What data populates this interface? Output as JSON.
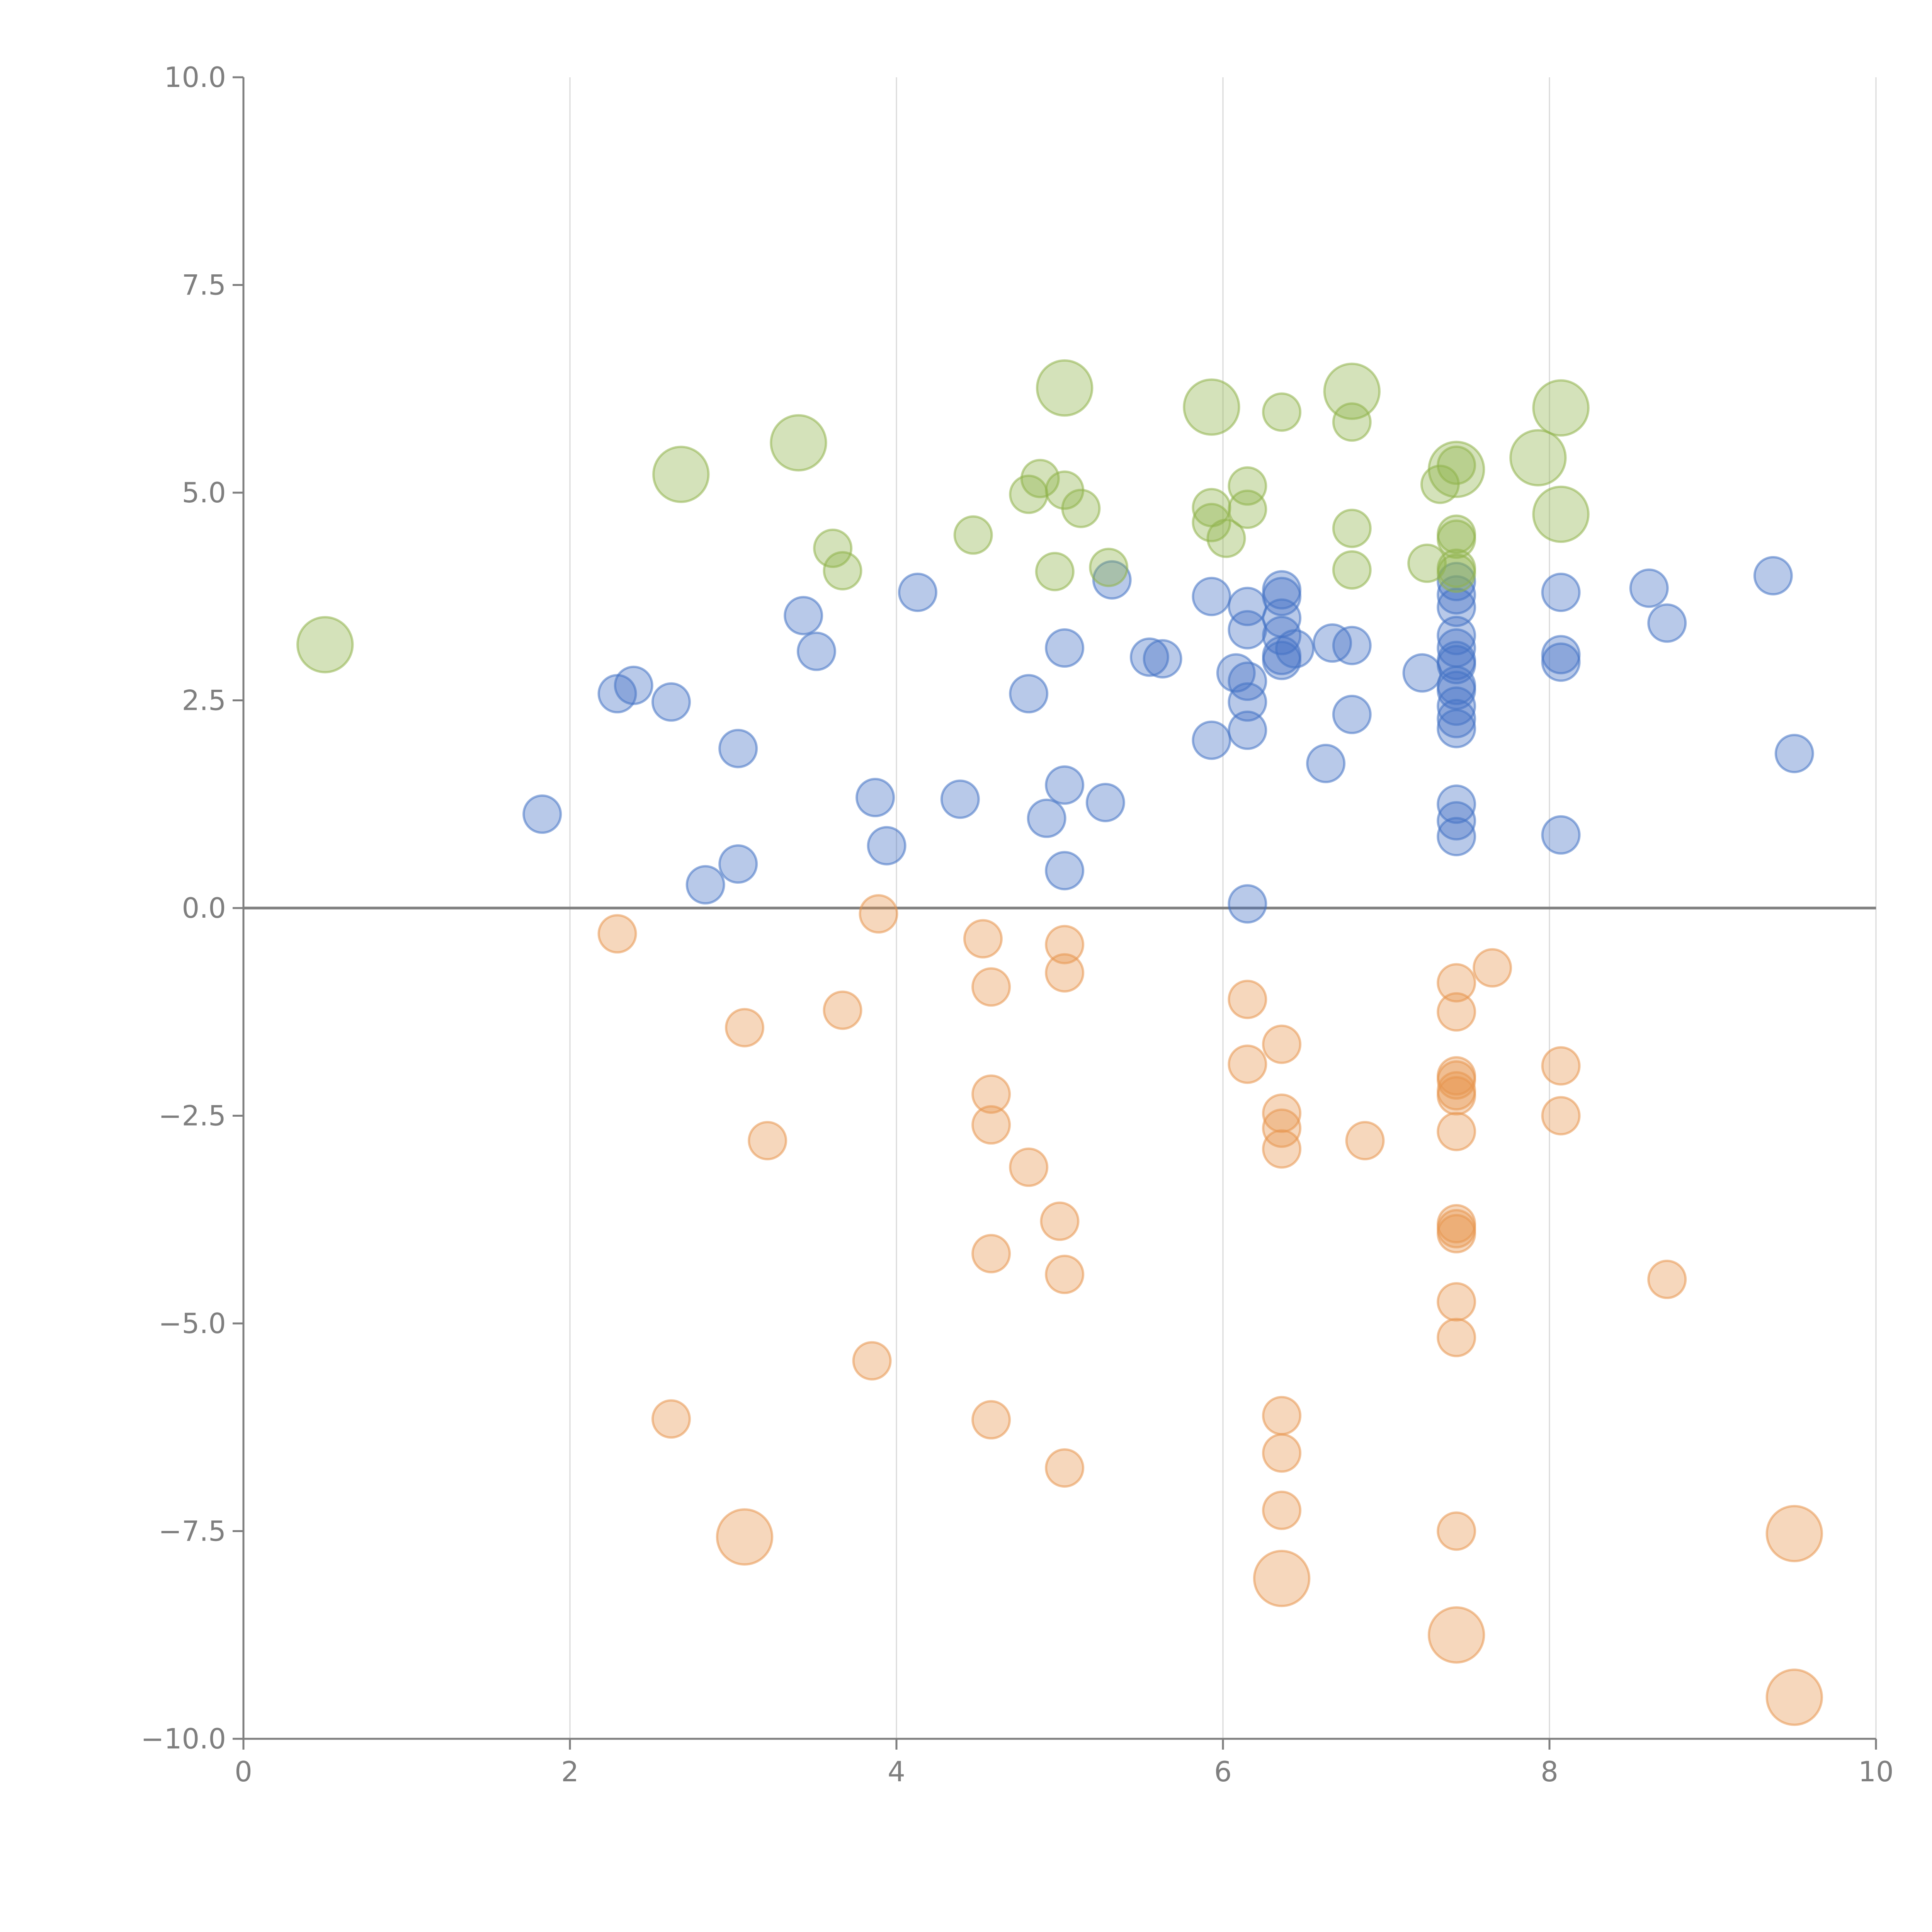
{
  "chart_data": {
    "type": "scatter",
    "title": "",
    "xlabel": "",
    "ylabel": "",
    "xlim": [
      0,
      10
    ],
    "ylim": [
      -10,
      10
    ],
    "x_ticks": [
      0,
      2,
      4,
      6,
      8,
      10
    ],
    "x_tick_labels": [
      "0",
      "2",
      "4",
      "6",
      "8",
      "10"
    ],
    "y_ticks": [
      -10,
      -7.5,
      -5,
      -2.5,
      0,
      2.5,
      5,
      7.5,
      10
    ],
    "y_tick_labels": [
      "−10.0",
      "−7.5",
      "−5.0",
      "−2.5",
      "0.0",
      "2.5",
      "5.0",
      "7.5",
      "10.0"
    ],
    "grid": "vertical",
    "zero_line": true,
    "series": [
      {
        "name": "blue",
        "color": "#4472c4",
        "points": [
          [
            1.83,
            1.13,
            1
          ],
          [
            2.29,
            2.58,
            1
          ],
          [
            2.39,
            2.68,
            1
          ],
          [
            2.62,
            2.48,
            1
          ],
          [
            2.83,
            0.28,
            1
          ],
          [
            3.03,
            1.92,
            1
          ],
          [
            3.03,
            0.53,
            1
          ],
          [
            3.43,
            3.52,
            1
          ],
          [
            3.51,
            3.09,
            1
          ],
          [
            3.87,
            1.33,
            1
          ],
          [
            3.94,
            0.75,
            1
          ],
          [
            4.13,
            3.8,
            1
          ],
          [
            4.39,
            1.31,
            1
          ],
          [
            4.81,
            2.58,
            1
          ],
          [
            4.92,
            1.08,
            1
          ],
          [
            5.03,
            3.13,
            1
          ],
          [
            5.03,
            1.48,
            1
          ],
          [
            5.03,
            0.45,
            1
          ],
          [
            5.28,
            1.27,
            1
          ],
          [
            5.32,
            3.95,
            1
          ],
          [
            5.55,
            3.02,
            1
          ],
          [
            5.63,
            3.0,
            1
          ],
          [
            5.93,
            3.75,
            1
          ],
          [
            5.93,
            2.02,
            1
          ],
          [
            6.08,
            2.83,
            1
          ],
          [
            6.15,
            3.63,
            1
          ],
          [
            6.15,
            3.35,
            1
          ],
          [
            6.15,
            2.73,
            1
          ],
          [
            6.15,
            2.48,
            1
          ],
          [
            6.15,
            2.14,
            1
          ],
          [
            6.15,
            0.05,
            1
          ],
          [
            6.36,
            3.83,
            1
          ],
          [
            6.36,
            3.75,
            1
          ],
          [
            6.36,
            3.49,
            1
          ],
          [
            6.36,
            3.28,
            1
          ],
          [
            6.36,
            3.04,
            1
          ],
          [
            6.36,
            2.98,
            1
          ],
          [
            6.44,
            3.12,
            1
          ],
          [
            6.63,
            1.74,
            1
          ],
          [
            6.67,
            3.19,
            1
          ],
          [
            6.79,
            3.16,
            1
          ],
          [
            6.79,
            2.33,
            1
          ],
          [
            7.22,
            2.83,
            1
          ],
          [
            7.43,
            3.93,
            1
          ],
          [
            7.43,
            3.77,
            1
          ],
          [
            7.43,
            3.62,
            1
          ],
          [
            7.43,
            3.28,
            1
          ],
          [
            7.43,
            3.13,
            1
          ],
          [
            7.43,
            2.98,
            1
          ],
          [
            7.43,
            2.93,
            1
          ],
          [
            7.43,
            2.68,
            1
          ],
          [
            7.43,
            2.62,
            1
          ],
          [
            7.43,
            2.43,
            1
          ],
          [
            7.43,
            2.28,
            1
          ],
          [
            7.43,
            2.16,
            1
          ],
          [
            7.43,
            1.25,
            1
          ],
          [
            7.43,
            1.05,
            1
          ],
          [
            7.43,
            0.86,
            1
          ],
          [
            8.07,
            3.8,
            1
          ],
          [
            8.07,
            3.05,
            1
          ],
          [
            8.07,
            2.96,
            1
          ],
          [
            8.07,
            0.88,
            1
          ],
          [
            8.61,
            3.85,
            1
          ],
          [
            8.72,
            3.43,
            1
          ],
          [
            9.37,
            4.0,
            1
          ],
          [
            9.5,
            1.86,
            1
          ]
        ]
      },
      {
        "name": "green",
        "color": "#8fb34a",
        "points": [
          [
            0.5,
            3.17,
            2.2
          ],
          [
            2.68,
            5.22,
            2.2
          ],
          [
            3.4,
            5.6,
            2.2
          ],
          [
            3.61,
            4.33,
            1
          ],
          [
            3.67,
            4.06,
            1
          ],
          [
            4.47,
            4.49,
            1
          ],
          [
            4.81,
            4.98,
            1
          ],
          [
            4.88,
            5.17,
            1
          ],
          [
            4.97,
            4.05,
            1
          ],
          [
            5.03,
            6.26,
            2.2
          ],
          [
            5.03,
            5.03,
            1
          ],
          [
            5.13,
            4.81,
            1
          ],
          [
            5.3,
            4.1,
            1
          ],
          [
            5.93,
            6.03,
            2.2
          ],
          [
            5.93,
            4.82,
            1
          ],
          [
            5.93,
            4.64,
            1
          ],
          [
            6.02,
            4.45,
            1
          ],
          [
            6.15,
            5.08,
            1
          ],
          [
            6.15,
            4.8,
            1
          ],
          [
            6.36,
            5.97,
            1
          ],
          [
            6.79,
            6.22,
            2.2
          ],
          [
            6.79,
            5.85,
            1
          ],
          [
            6.79,
            4.57,
            1
          ],
          [
            6.79,
            4.07,
            1
          ],
          [
            7.25,
            4.15,
            1
          ],
          [
            7.33,
            5.1,
            1
          ],
          [
            7.43,
            5.28,
            2.2
          ],
          [
            7.43,
            5.33,
            1
          ],
          [
            7.43,
            4.5,
            1
          ],
          [
            7.43,
            4.44,
            1
          ],
          [
            7.43,
            4.09,
            1
          ],
          [
            7.43,
            4.03,
            1
          ],
          [
            7.93,
            5.42,
            2.2
          ],
          [
            8.07,
            6.02,
            2.2
          ],
          [
            8.07,
            4.74,
            2.2
          ]
        ]
      },
      {
        "name": "orange",
        "color": "#e8954f",
        "points": [
          [
            2.29,
            -0.31,
            1
          ],
          [
            3.07,
            -1.44,
            1
          ],
          [
            3.07,
            -7.57,
            2.2
          ],
          [
            3.21,
            -2.8,
            1
          ],
          [
            2.62,
            -6.15,
            1
          ],
          [
            3.67,
            -1.23,
            1
          ],
          [
            3.85,
            -5.45,
            1
          ],
          [
            3.89,
            -0.07,
            1
          ],
          [
            4.53,
            -0.37,
            1
          ],
          [
            4.58,
            -0.95,
            1
          ],
          [
            4.58,
            -2.24,
            1
          ],
          [
            4.58,
            -2.61,
            1
          ],
          [
            4.58,
            -4.16,
            1
          ],
          [
            4.58,
            -6.16,
            1
          ],
          [
            4.81,
            -3.12,
            1
          ],
          [
            5.0,
            -3.77,
            1
          ],
          [
            5.03,
            -0.44,
            1
          ],
          [
            5.03,
            -0.78,
            1
          ],
          [
            5.03,
            -4.41,
            1
          ],
          [
            5.03,
            -6.74,
            1
          ],
          [
            6.15,
            -1.1,
            1
          ],
          [
            6.15,
            -1.88,
            1
          ],
          [
            6.36,
            -1.64,
            1
          ],
          [
            6.36,
            -2.47,
            1
          ],
          [
            6.36,
            -2.65,
            1
          ],
          [
            6.36,
            -2.9,
            1
          ],
          [
            6.36,
            -6.11,
            1
          ],
          [
            6.36,
            -6.56,
            1
          ],
          [
            6.36,
            -7.25,
            1
          ],
          [
            6.36,
            -8.07,
            2.2
          ],
          [
            6.87,
            -2.8,
            1
          ],
          [
            7.43,
            -0.9,
            1
          ],
          [
            7.43,
            -1.25,
            1
          ],
          [
            7.43,
            -2.02,
            1
          ],
          [
            7.43,
            -2.07,
            1
          ],
          [
            7.43,
            -2.2,
            1
          ],
          [
            7.43,
            -2.26,
            1
          ],
          [
            7.43,
            -2.69,
            1
          ],
          [
            7.43,
            -3.8,
            1
          ],
          [
            7.43,
            -3.86,
            1
          ],
          [
            7.43,
            -3.92,
            1
          ],
          [
            7.43,
            -4.74,
            1
          ],
          [
            7.43,
            -5.17,
            1
          ],
          [
            7.43,
            -7.5,
            1
          ],
          [
            7.43,
            -8.75,
            2.2
          ],
          [
            7.65,
            -0.72,
            1
          ],
          [
            8.07,
            -1.9,
            1
          ],
          [
            8.07,
            -2.5,
            1
          ],
          [
            8.72,
            -4.47,
            1
          ],
          [
            9.5,
            -7.53,
            2.2
          ],
          [
            9.5,
            -9.5,
            2.2
          ]
        ]
      }
    ]
  }
}
